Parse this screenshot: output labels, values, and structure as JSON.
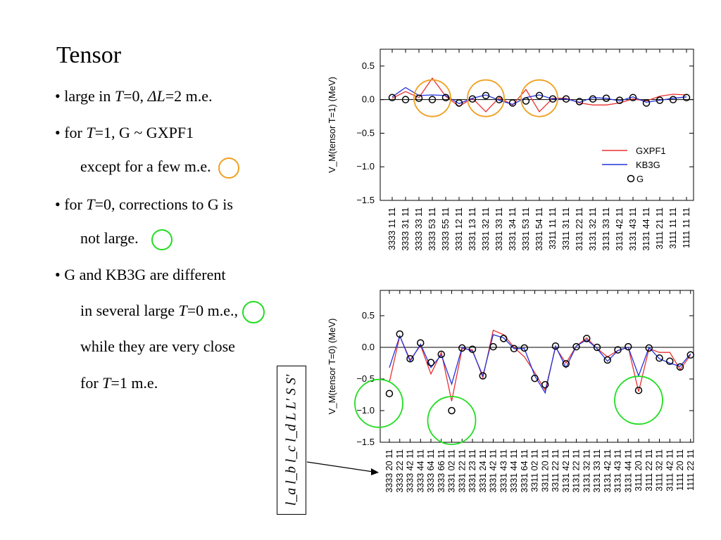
{
  "slide": {
    "title": "Tensor",
    "bullet1": {
      "prefix": "• large in ",
      "T": "T",
      "eq1": "=0,  ",
      "dL": "ΔL",
      "rest": "=2 m.e."
    },
    "bullet2": {
      "prefix": "• for ",
      "T": "T",
      "rest": "=1, G ~ GXPF1"
    },
    "bullet2b": "except for a few m.e.",
    "bullet3": {
      "prefix": "• for ",
      "T": "T",
      "rest": "=0, corrections to G is"
    },
    "bullet3b": "not large.",
    "bullet4": "• G and KB3G are different",
    "bullet4b": {
      "prefix": "in several large ",
      "T": "T",
      "rest": "=0 m.e.,"
    },
    "bullet4c": "while they are very close",
    "bullet4d": {
      "prefix": "for ",
      "T": "T",
      "rest": "=1 m.e."
    },
    "caption": "l_a l_b l_c l_d  L L'  S S'",
    "colors": {
      "orange": "#f0a020",
      "green": "#22dd22",
      "red": "#e83030",
      "blue": "#2233dd"
    }
  },
  "chart_data": [
    {
      "type": "line",
      "ylabel": "V_M(tensor T=1)  (MeV)",
      "ylim": [
        -1.5,
        0.75
      ],
      "yticks": [
        0.5,
        0.0,
        -0.5,
        -1.0,
        -1.5
      ],
      "ytick_labels": [
        "0.5",
        "0.0",
        "−0.5",
        "−1.0",
        "−1.5"
      ],
      "categories": [
        "3333 11 11",
        "3333 31 11",
        "3333 33 11",
        "3333 53 11",
        "3333 55 11",
        "3331 12 11",
        "3331 13 11",
        "3331 32 11",
        "3331 33 11",
        "3331 34 11",
        "3331 53 11",
        "3331 54 11",
        "3311 11 11",
        "3311 31 11",
        "3131 22 11",
        "3131 32 11",
        "3131 33 11",
        "3131 42 11",
        "3131 43 11",
        "3131 44 11",
        "3111 21 11",
        "3111 11 11",
        "1111 11 11"
      ],
      "series": [
        {
          "name": "GXPF1",
          "values": [
            0.02,
            0.12,
            0.03,
            0.32,
            0.05,
            -0.1,
            0.02,
            -0.18,
            0.03,
            -0.08,
            0.15,
            -0.18,
            0.02,
            0.02,
            -0.05,
            -0.08,
            -0.08,
            -0.05,
            0.01,
            -0.02,
            0.05,
            0.08,
            0.07
          ]
        },
        {
          "name": "KB3G",
          "values": [
            0.04,
            0.18,
            0.06,
            0.07,
            0.06,
            -0.06,
            0.02,
            0.07,
            -0.01,
            -0.07,
            0.03,
            0.07,
            0.01,
            0.01,
            -0.04,
            0.03,
            0.02,
            -0.02,
            0.04,
            -0.04,
            -0.01,
            0.02,
            0.04
          ]
        },
        {
          "name": "G",
          "values": [
            0.03,
            0.0,
            0.02,
            0.0,
            0.03,
            -0.05,
            0.01,
            0.06,
            0.0,
            -0.05,
            -0.02,
            0.06,
            0.01,
            0.01,
            -0.03,
            0.01,
            0.02,
            -0.01,
            0.03,
            -0.05,
            -0.01,
            0.0,
            0.03
          ]
        }
      ],
      "highlights": [
        {
          "category": "3333 53 11",
          "color": "orange"
        },
        {
          "category": "3331 32 11",
          "color": "orange"
        },
        {
          "category": "3331 54 11",
          "color": "orange"
        }
      ],
      "legend_position": "bottom-right"
    },
    {
      "type": "line",
      "ylabel": "V_M(tensor T=0)  (MeV)",
      "ylim": [
        -1.5,
        0.9
      ],
      "yticks": [
        0.5,
        0.0,
        -0.5,
        -1.0,
        -1.5
      ],
      "ytick_labels": [
        "0.5",
        "0.0",
        "−0.5",
        "−1.0",
        "−1.5"
      ],
      "categories": [
        "3333 20 11",
        "3333 22 11",
        "3333 42 11",
        "3333 44 11",
        "3333 64 11",
        "3333 66 11",
        "3331 02 11",
        "3331 22 11",
        "3331 23 11",
        "3331 24 11",
        "3331 42 11",
        "3331 43 11",
        "3331 44 11",
        "3331 64 11",
        "3311 02 11",
        "3311 20 11",
        "3311 22 11",
        "3131 42 11",
        "3131 22 11",
        "3131 32 11",
        "3131 33 11",
        "3131 42 11",
        "3131 43 11",
        "3131 44 11",
        "3111 20 11",
        "3111 22 11",
        "3111 32 11",
        "3111 42 11",
        "1111 20 11",
        "1111 22 11"
      ],
      "series": [
        {
          "name": "GXPF1",
          "values": [
            -0.55,
            0.18,
            -0.2,
            0.03,
            -0.42,
            -0.08,
            -0.85,
            -0.02,
            -0.04,
            -0.48,
            0.27,
            0.2,
            0.0,
            -0.15,
            -0.4,
            -0.68,
            0.0,
            -0.25,
            0.02,
            0.15,
            -0.02,
            -0.15,
            -0.05,
            0.0,
            -0.7,
            -0.02,
            -0.08,
            -0.08,
            -0.35,
            -0.12
          ]
        },
        {
          "name": "KB3G",
          "values": [
            -0.32,
            0.18,
            -0.22,
            0.05,
            -0.32,
            -0.12,
            -0.58,
            0.0,
            -0.06,
            -0.45,
            0.2,
            0.15,
            -0.02,
            -0.02,
            -0.45,
            -0.72,
            0.02,
            -0.32,
            0.02,
            0.12,
            -0.02,
            -0.22,
            -0.05,
            0.0,
            -0.45,
            0.0,
            -0.18,
            -0.25,
            -0.3,
            -0.1
          ]
        },
        {
          "name": "G",
          "values": [
            -0.73,
            0.21,
            -0.18,
            0.07,
            -0.24,
            -0.11,
            -1.0,
            -0.01,
            -0.03,
            -0.45,
            0.01,
            0.14,
            -0.02,
            -0.01,
            -0.49,
            -0.59,
            0.02,
            -0.26,
            0.01,
            0.14,
            0.0,
            -0.2,
            -0.04,
            0.01,
            -0.68,
            -0.01,
            -0.17,
            -0.22,
            -0.31,
            -0.12
          ]
        }
      ],
      "highlights": [
        {
          "category": "3333 20 11",
          "color": "green"
        },
        {
          "category": "3331 02 11",
          "color": "green"
        },
        {
          "category": "3111 20 11",
          "color": "green"
        }
      ]
    }
  ]
}
